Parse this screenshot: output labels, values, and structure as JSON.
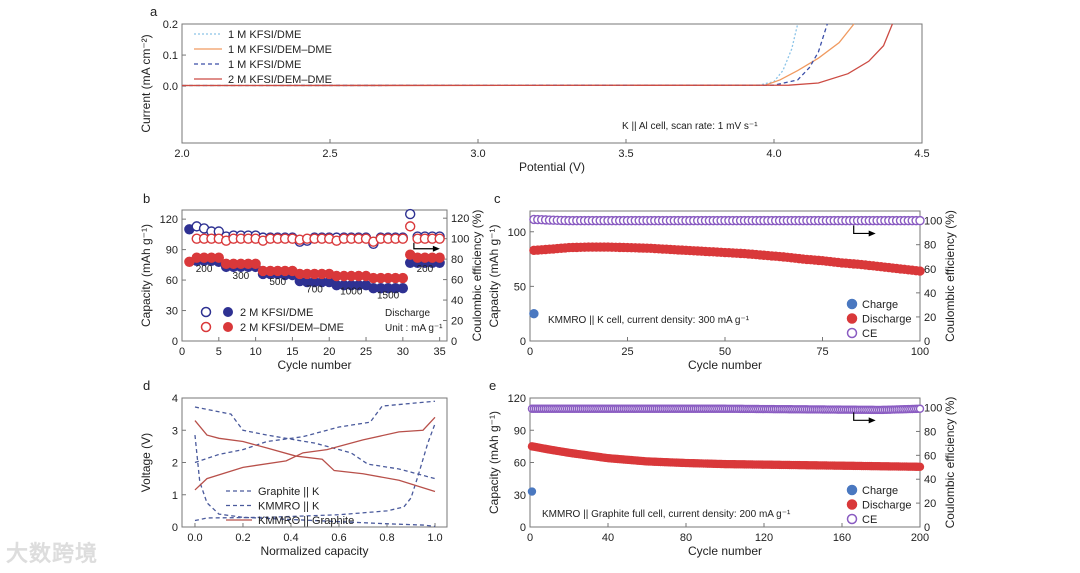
{
  "watermark": "大数跨境",
  "chart_data": [
    {
      "panel": "a",
      "type": "line",
      "xlabel": "Potential (V)",
      "ylabel": "Current (mA cm⁻²)",
      "xlim": [
        2.0,
        4.5
      ],
      "ylim": [
        -0.183,
        0.2
      ],
      "xticks": [
        "2.0",
        "2.5",
        "3.0",
        "3.5",
        "4.0",
        "4.5"
      ],
      "yticks": [
        "0.0",
        "0.1",
        "0.2"
      ],
      "annotation": "K || Al cell, scan rate: 1 mV s⁻¹",
      "legend_position": "top-left",
      "series": [
        {
          "name": "1 M KFSI/DME",
          "color": "#8cc4e8",
          "style": "dotted",
          "points": [
            [
              2.0,
              0.002
            ],
            [
              3.95,
              0.003
            ],
            [
              4.0,
              0.015
            ],
            [
              4.03,
              0.05
            ],
            [
              4.06,
              0.12
            ],
            [
              4.08,
              0.2
            ]
          ]
        },
        {
          "name": "1 M KFSI/DEM–DME",
          "color": "#f09a60",
          "style": "solid",
          "points": [
            [
              2.0,
              0.002
            ],
            [
              3.97,
              0.003
            ],
            [
              4.02,
              0.02
            ],
            [
              4.08,
              0.05
            ],
            [
              4.15,
              0.09
            ],
            [
              4.22,
              0.14
            ],
            [
              4.27,
              0.2
            ]
          ]
        },
        {
          "name": "1 M KFSI/DME",
          "color": "#3a4ea8",
          "style": "dashed",
          "points": [
            [
              2.0,
              0.002
            ],
            [
              4.0,
              0.003
            ],
            [
              4.08,
              0.02
            ],
            [
              4.12,
              0.06
            ],
            [
              4.15,
              0.11
            ],
            [
              4.18,
              0.2
            ]
          ]
        },
        {
          "name": "2 M KFSI/DEM–DME",
          "color": "#cc4b43",
          "style": "solid",
          "points": [
            [
              2.0,
              0.002
            ],
            [
              4.05,
              0.003
            ],
            [
              4.15,
              0.01
            ],
            [
              4.25,
              0.04
            ],
            [
              4.32,
              0.08
            ],
            [
              4.37,
              0.13
            ],
            [
              4.4,
              0.2
            ]
          ]
        }
      ]
    },
    {
      "panel": "b",
      "type": "scatter",
      "xlabel": "Cycle number",
      "ylabel": "Capacity (mAh g⁻¹)",
      "ylabel_right": "Coulombic efficiency (%)",
      "xlim": [
        0,
        36
      ],
      "ylim": [
        0,
        129
      ],
      "ylim_right": [
        0,
        128
      ],
      "xticks": [
        0,
        5,
        10,
        15,
        20,
        25,
        30,
        35
      ],
      "yticks": [
        0,
        30,
        60,
        90,
        120
      ],
      "yticks_right": [
        0,
        20,
        40,
        60,
        80,
        100,
        120
      ],
      "rate_labels": [
        {
          "text": "200",
          "x": 3,
          "y": 68
        },
        {
          "text": "300",
          "x": 8,
          "y": 61
        },
        {
          "text": "500",
          "x": 13,
          "y": 55
        },
        {
          "text": "700",
          "x": 18,
          "y": 48
        },
        {
          "text": "1000",
          "x": 23,
          "y": 46
        },
        {
          "text": "1500",
          "x": 28,
          "y": 42
        },
        {
          "text": "200",
          "x": 33,
          "y": 68
        }
      ],
      "note": [
        "Discharge",
        "Unit : mA g⁻¹"
      ],
      "legend": [
        "2 M KFSI/DME",
        "2 M KFSI/DEM–DME"
      ],
      "series": [
        {
          "name": "2 M KFSI/DME capacity",
          "color": "#2e3192",
          "filled": true,
          "axis": "left",
          "values": [
            110,
            79,
            79,
            79,
            78,
            73,
            73,
            73,
            73,
            73,
            66,
            66,
            66,
            65,
            65,
            59,
            58,
            58,
            58,
            58,
            55,
            55,
            55,
            55,
            55,
            52,
            52,
            52,
            52,
            52,
            77,
            77,
            77,
            77,
            77
          ]
        },
        {
          "name": "2 M KFSI/DEM–DME capacity",
          "color": "#d9383a",
          "filled": true,
          "axis": "left",
          "values": [
            78,
            82,
            82,
            82,
            82,
            76,
            76,
            76,
            76,
            76,
            69,
            69,
            69,
            69,
            69,
            66,
            66,
            66,
            66,
            66,
            64,
            64,
            64,
            64,
            64,
            62,
            62,
            62,
            62,
            62,
            85,
            82,
            82,
            82,
            82
          ]
        },
        {
          "name": "2 M KFSI/DME CE",
          "color": "#2e3192",
          "filled": false,
          "axis": "right",
          "values": [
            null,
            112,
            110,
            107,
            107,
            102,
            103,
            103,
            103,
            103,
            101,
            101,
            101,
            101,
            101,
            97,
            98,
            101,
            101,
            101,
            101,
            101,
            101,
            101,
            101,
            95,
            101,
            101,
            101,
            101,
            124,
            102,
            102,
            102,
            102
          ]
        },
        {
          "name": "2 M KFSI/DEM–DME CE",
          "color": "#d9383a",
          "filled": false,
          "axis": "right",
          "values": [
            null,
            100,
            100,
            100,
            100,
            98,
            100,
            100,
            100,
            100,
            98,
            100,
            100,
            100,
            100,
            99,
            100,
            100,
            100,
            100,
            98,
            100,
            100,
            100,
            100,
            97,
            100,
            100,
            100,
            100,
            112,
            100,
            100,
            100,
            100
          ]
        }
      ]
    },
    {
      "panel": "c",
      "type": "scatter",
      "xlabel": "Cycle number",
      "ylabel": "Capacity (mAh g⁻¹)",
      "ylabel_right": "Coulombic efficiency (%)",
      "xlim": [
        0,
        100
      ],
      "ylim": [
        0,
        119
      ],
      "ylim_right": [
        0,
        108
      ],
      "xticks": [
        0,
        25,
        50,
        75,
        100
      ],
      "yticks": [
        0,
        50,
        100
      ],
      "yticks_right": [
        0,
        20,
        40,
        60,
        80,
        100
      ],
      "annotation": "KMMRO || K cell, current density: 300 mA g⁻¹",
      "legend": [
        "Charge",
        "Discharge",
        "CE"
      ],
      "series": [
        {
          "name": "Charge",
          "color": "#4a78c0",
          "filled": true,
          "axis": "left",
          "points": [
            [
              1,
              25
            ]
          ]
        },
        {
          "name": "Discharge",
          "color": "#d9383a",
          "filled": true,
          "axis": "left",
          "points": [
            [
              1,
              83
            ],
            [
              5,
              84
            ],
            [
              10,
              85.5
            ],
            [
              15,
              86
            ],
            [
              20,
              86
            ],
            [
              25,
              85.5
            ],
            [
              30,
              85
            ],
            [
              35,
              84
            ],
            [
              40,
              83
            ],
            [
              45,
              82
            ],
            [
              50,
              81
            ],
            [
              55,
              80
            ],
            [
              60,
              78.5
            ],
            [
              65,
              77
            ],
            [
              70,
              75
            ],
            [
              75,
              73.5
            ],
            [
              80,
              71.5
            ],
            [
              85,
              70
            ],
            [
              90,
              68
            ],
            [
              95,
              66
            ],
            [
              100,
              64
            ]
          ]
        },
        {
          "name": "CE",
          "color": "#8a5cc2",
          "filled": false,
          "axis": "right",
          "points": [
            [
              1,
              101
            ],
            [
              5,
              100.5
            ],
            [
              10,
              100
            ],
            [
              100,
              100
            ]
          ]
        }
      ]
    },
    {
      "panel": "d",
      "type": "line",
      "xlabel": "Normalized capacity",
      "ylabel": "Voltage (V)",
      "xlim": [
        -0.054,
        1.05
      ],
      "ylim": [
        0,
        4
      ],
      "xticks": [
        "0.0",
        "0.2",
        "0.4",
        "0.6",
        "0.8",
        "1.0"
      ],
      "yticks": [
        0,
        1,
        2,
        3,
        4
      ],
      "legend": [
        "Graphite || K",
        "KMMRO || K",
        "KMMRO || Graphite"
      ],
      "series": [
        {
          "name": "Graphite || K",
          "color": "#4a5a9c",
          "style": "dashed",
          "branches": [
            [
              [
                0,
                2.85
              ],
              [
                0.02,
                1.4
              ],
              [
                0.05,
                0.75
              ],
              [
                0.1,
                0.4
              ],
              [
                0.2,
                0.3
              ],
              [
                0.5,
                0.2
              ],
              [
                0.8,
                0.1
              ],
              [
                0.95,
                0.06
              ],
              [
                1.0,
                0.02
              ]
            ],
            [
              [
                0,
                0.2
              ],
              [
                0.05,
                0.28
              ],
              [
                0.3,
                0.3
              ],
              [
                0.6,
                0.38
              ],
              [
                0.8,
                0.5
              ],
              [
                0.87,
                0.62
              ],
              [
                0.9,
                0.9
              ],
              [
                0.93,
                1.6
              ],
              [
                0.97,
                2.6
              ],
              [
                1.0,
                3.2
              ]
            ]
          ]
        },
        {
          "name": "KMMRO || K",
          "color": "#4a5a9c",
          "style": "dashed",
          "branches": [
            [
              [
                0,
                2.0
              ],
              [
                0.1,
                2.25
              ],
              [
                0.2,
                2.4
              ],
              [
                0.3,
                2.65
              ],
              [
                0.45,
                2.8
              ],
              [
                0.6,
                3.1
              ],
              [
                0.73,
                3.25
              ],
              [
                0.78,
                3.75
              ],
              [
                1.0,
                3.9
              ]
            ],
            [
              [
                0,
                3.72
              ],
              [
                0.15,
                3.5
              ],
              [
                0.2,
                3.0
              ],
              [
                0.3,
                2.85
              ],
              [
                0.5,
                2.6
              ],
              [
                0.65,
                2.3
              ],
              [
                0.72,
                1.95
              ],
              [
                0.85,
                1.8
              ],
              [
                1.0,
                1.5
              ]
            ]
          ]
        },
        {
          "name": "KMMRO || Graphite",
          "color": "#b8504a",
          "style": "solid",
          "branches": [
            [
              [
                0,
                1.15
              ],
              [
                0.05,
                1.5
              ],
              [
                0.2,
                1.85
              ],
              [
                0.38,
                2.05
              ],
              [
                0.45,
                2.3
              ],
              [
                0.55,
                2.4
              ],
              [
                0.7,
                2.7
              ],
              [
                0.85,
                2.95
              ],
              [
                0.95,
                3.0
              ],
              [
                1.0,
                3.4
              ]
            ],
            [
              [
                0,
                3.3
              ],
              [
                0.05,
                2.85
              ],
              [
                0.1,
                2.75
              ],
              [
                0.2,
                2.65
              ],
              [
                0.3,
                2.45
              ],
              [
                0.42,
                2.2
              ],
              [
                0.53,
                2.1
              ],
              [
                0.58,
                1.75
              ],
              [
                0.7,
                1.65
              ],
              [
                0.85,
                1.45
              ],
              [
                1.0,
                1.1
              ]
            ]
          ]
        }
      ]
    },
    {
      "panel": "e",
      "type": "scatter",
      "xlabel": "Cycle number",
      "ylabel": "Capacity (mAh g⁻¹)",
      "ylabel_right": "Coulombic efficiency (%)",
      "xlim": [
        0,
        200
      ],
      "ylim": [
        0,
        120
      ],
      "ylim_right": [
        0,
        108
      ],
      "xticks": [
        0,
        40,
        80,
        120,
        160,
        200
      ],
      "yticks": [
        0,
        30,
        60,
        90,
        120
      ],
      "yticks_right": [
        0,
        20,
        40,
        60,
        80,
        100
      ],
      "annotation": "KMMRO || Graphite full cell, current density: 200 mA g⁻¹",
      "legend": [
        "Charge",
        "Discharge",
        "CE"
      ],
      "series": [
        {
          "name": "Charge",
          "color": "#4a78c0",
          "filled": true,
          "axis": "left",
          "points": [
            [
              1,
              33
            ]
          ]
        },
        {
          "name": "Discharge",
          "color": "#d9383a",
          "filled": true,
          "axis": "left",
          "points": [
            [
              1,
              75
            ],
            [
              10,
              72
            ],
            [
              20,
              69
            ],
            [
              40,
              64
            ],
            [
              60,
              61
            ],
            [
              80,
              59.5
            ],
            [
              100,
              58.5
            ],
            [
              120,
              58
            ],
            [
              140,
              57.5
            ],
            [
              160,
              57
            ],
            [
              180,
              56.5
            ],
            [
              200,
              56
            ]
          ]
        },
        {
          "name": "CE",
          "color": "#8a5cc2",
          "filled": false,
          "axis": "right",
          "points": [
            [
              1,
              99
            ],
            [
              100,
              99
            ],
            [
              180,
              98
            ],
            [
              200,
              99
            ]
          ]
        }
      ]
    }
  ]
}
